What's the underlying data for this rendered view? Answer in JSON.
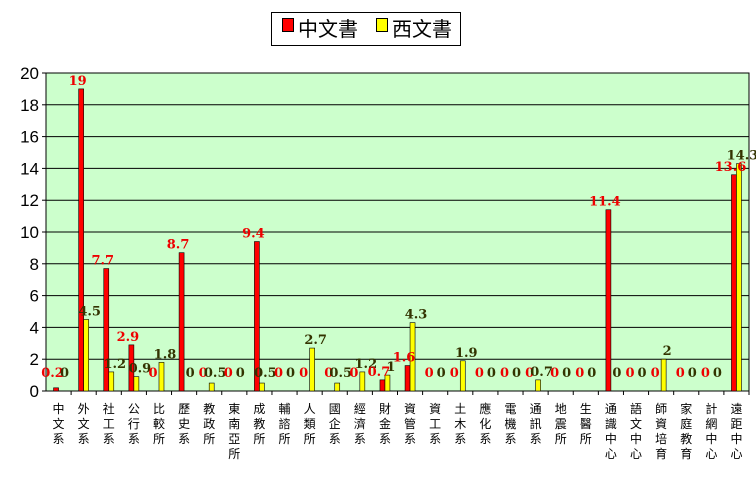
{
  "chart_data": {
    "type": "bar",
    "legend_placement": "top",
    "grid": true,
    "ylim": [
      0,
      20
    ],
    "yticks": [
      "0",
      "2",
      "4",
      "6",
      "8",
      "10",
      "12",
      "14",
      "16",
      "18",
      "20"
    ],
    "categories": [
      "中文系",
      "外文系",
      "社工系",
      "公行系",
      "比較所",
      "歷史系",
      "教政所",
      "東南亞所",
      "成教所",
      "輔諮所",
      "人類所",
      "國企系",
      "經濟系",
      "財金系",
      "資管系",
      "資工系",
      "土木系",
      "應化系",
      "電機系",
      "通訊系",
      "地震所",
      "生醫所",
      "通識中心",
      "語文中心",
      "師資培育",
      "家庭教育",
      "計網中心",
      "遠距中心"
    ],
    "series": [
      {
        "name": "中文書",
        "color": "#ff0000",
        "values": [
          0.2,
          19,
          7.7,
          2.9,
          0,
          8.7,
          0,
          0,
          9.4,
          0,
          0,
          0,
          0,
          0.7,
          1.6,
          0,
          0,
          0,
          0,
          0,
          0,
          0,
          11.4,
          0,
          0,
          0,
          0,
          13.6
        ],
        "labels": [
          "0.2",
          "19",
          "7.7",
          "2.9",
          "0",
          "8.7",
          "0",
          "0",
          "9.4",
          "0",
          "0",
          "0",
          "0",
          "0.7",
          "1.6",
          "0",
          "0",
          "0",
          "0",
          "0",
          "0",
          "0",
          "11.4",
          "0",
          "0",
          "0",
          "0",
          "13.6"
        ]
      },
      {
        "name": "西文書",
        "color": "#ffff00",
        "values": [
          0,
          4.5,
          1.2,
          0.9,
          1.8,
          0,
          0.5,
          0,
          0.5,
          0,
          2.7,
          0.5,
          1.2,
          1,
          4.3,
          0,
          1.9,
          0,
          0,
          0.7,
          0,
          0,
          0,
          0,
          2,
          0,
          0,
          14.3
        ],
        "labels": [
          "0",
          "4.5",
          "1.2",
          "0.9",
          "1.8",
          "0",
          "0.5",
          "0",
          "0.5",
          "0",
          "2.7",
          "0.5",
          "1.2",
          "1",
          "4.3",
          "0",
          "1.9",
          "0",
          "0",
          "0.7",
          "0",
          "0",
          "0",
          "0",
          "2",
          "0",
          "0",
          "14.3"
        ]
      }
    ]
  }
}
